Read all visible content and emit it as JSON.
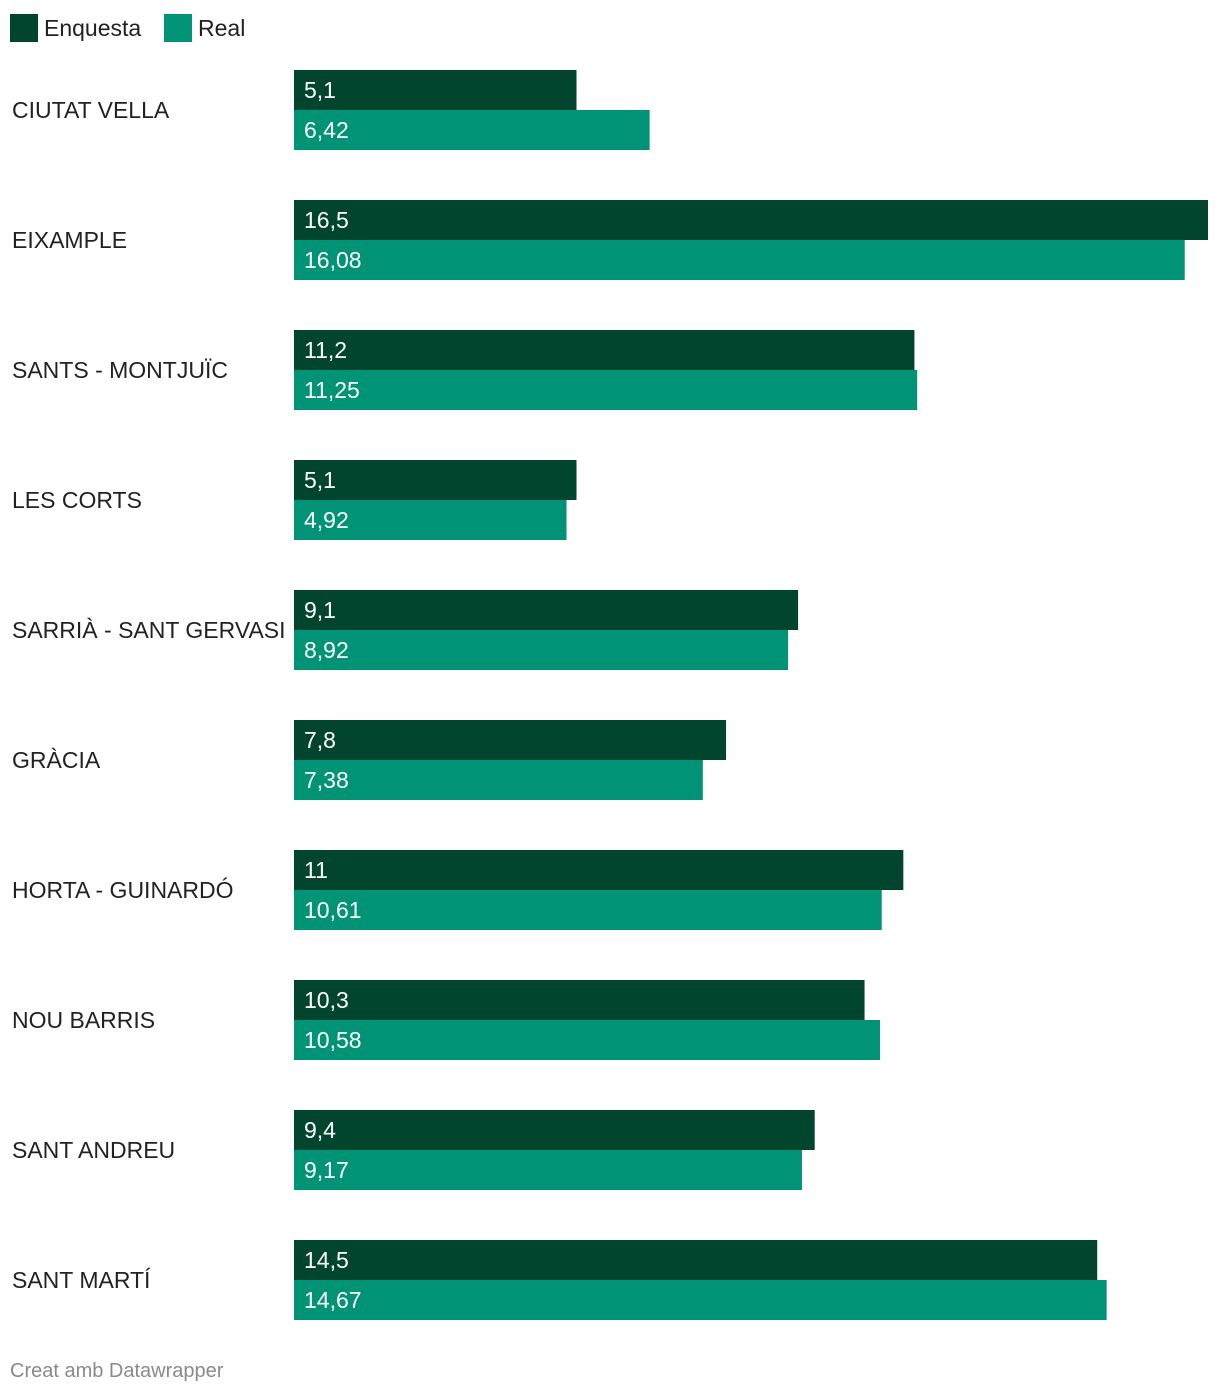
{
  "chart_data": {
    "type": "bar",
    "orientation": "horizontal",
    "categories": [
      "CIUTAT VELLA",
      "EIXAMPLE",
      "SANTS - MONTJUÏC",
      "LES CORTS",
      "SARRIÀ - SANT GERVASI",
      "GRÀCIA",
      "HORTA - GUINARDÓ",
      "NOU BARRIS",
      "SANT ANDREU",
      "SANT MARTÍ"
    ],
    "series": [
      {
        "name": "Enquesta",
        "color": "#02452f",
        "values": [
          5.1,
          16.5,
          11.2,
          5.1,
          9.1,
          7.8,
          11,
          10.3,
          9.4,
          14.5
        ],
        "labels": [
          "5,1",
          "16,5",
          "11,2",
          "5,1",
          "9,1",
          "7,8",
          "11",
          "10,3",
          "9,4",
          "14,5"
        ]
      },
      {
        "name": "Real",
        "color": "#009375",
        "values": [
          6.42,
          16.08,
          11.25,
          4.92,
          8.92,
          7.38,
          10.61,
          10.58,
          9.17,
          14.67
        ],
        "labels": [
          "6,42",
          "16,08",
          "11,25",
          "4,92",
          "8,92",
          "7,38",
          "10,61",
          "10,58",
          "9,17",
          "14,67"
        ]
      }
    ],
    "xlim": [
      0,
      16.5
    ],
    "grid": false,
    "legend": "top-left"
  },
  "footer": {
    "credit": "Creat amb Datawrapper"
  }
}
